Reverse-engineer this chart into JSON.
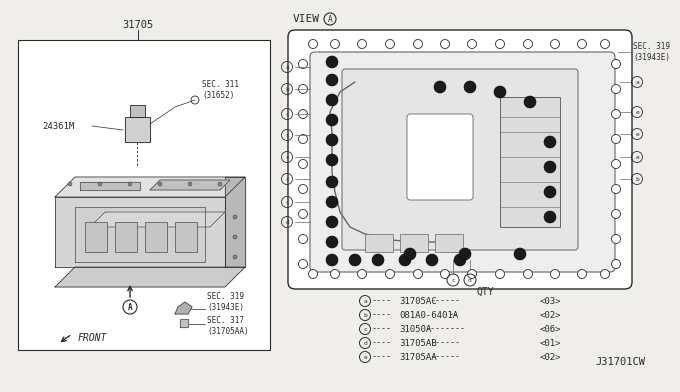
{
  "title": "31705",
  "view_label": "VIEW",
  "view_circle": "A",
  "part_label": "24361M",
  "front_label": "FRONT",
  "sec311": "SEC. 311\n(31652)",
  "sec319_left": "SEC. 319\n(31943E)",
  "sec317": "SEC. 317\n(31705AA)",
  "sec319_right": "SEC. 319\n(31943E)",
  "parts_header": "QTY",
  "parts": [
    {
      "sym": "a",
      "part": "31705AC",
      "dashes1": "----",
      "dashes2": "------",
      "qty": "<03>"
    },
    {
      "sym": "b",
      "part": "081A0-6401A",
      "dashes1": "----",
      "dashes2": "--",
      "qty": "<02>"
    },
    {
      "sym": "c",
      "part": "31050A",
      "dashes1": "----",
      "dashes2": "--------",
      "qty": "<06>"
    },
    {
      "sym": "d",
      "part": "31705AB",
      "dashes1": "----",
      "dashes2": "------",
      "qty": "<01>"
    },
    {
      "sym": "e",
      "part": "31705AA",
      "dashes1": "----",
      "dashes2": "------",
      "qty": "<02>"
    }
  ],
  "diagram_id": "J31701CW",
  "bg": "#f0eeeb",
  "lc": "#2a2a2a",
  "gray1": "#c8c8c8",
  "gray2": "#b0b0b0",
  "gray3": "#909090",
  "gray_line": "#666666"
}
